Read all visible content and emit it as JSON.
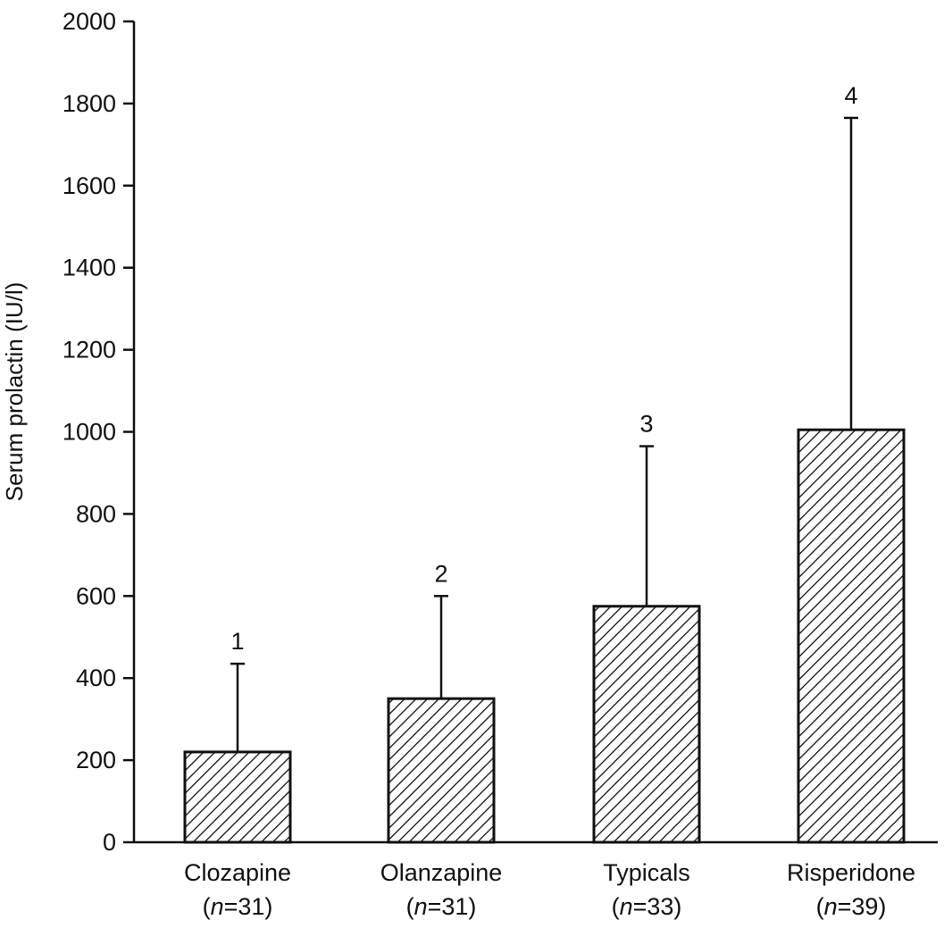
{
  "chart_data": {
    "type": "bar",
    "title": "",
    "xlabel": "",
    "ylabel": "Serum prolactin (IU/l)",
    "ylim": [
      0,
      2000
    ],
    "yticks": [
      0,
      200,
      400,
      600,
      800,
      1000,
      1200,
      1400,
      1600,
      1800,
      2000
    ],
    "grid": false,
    "bar_fill": "diagonal-hatch",
    "colors": {
      "ink": "#111111",
      "background": "#ffffff"
    },
    "categories": [
      {
        "name": "Clozapine",
        "n_label": "(n=31)",
        "n_prefix": "(",
        "n_var": "n",
        "n_rest": "=31)"
      },
      {
        "name": "Olanzapine",
        "n_label": "(n=31)",
        "n_prefix": "(",
        "n_var": "n",
        "n_rest": "=31)"
      },
      {
        "name": "Typicals",
        "n_label": "(n=33)",
        "n_prefix": "(",
        "n_var": "n",
        "n_rest": "=33)"
      },
      {
        "name": "Risperidone",
        "n_label": "(n=39)",
        "n_prefix": "(",
        "n_var": "n",
        "n_rest": "=39)"
      }
    ],
    "values": [
      220,
      350,
      575,
      1005
    ],
    "error_upper": [
      435,
      600,
      965,
      1765
    ],
    "annotations": [
      "1",
      "2",
      "3",
      "4"
    ]
  }
}
